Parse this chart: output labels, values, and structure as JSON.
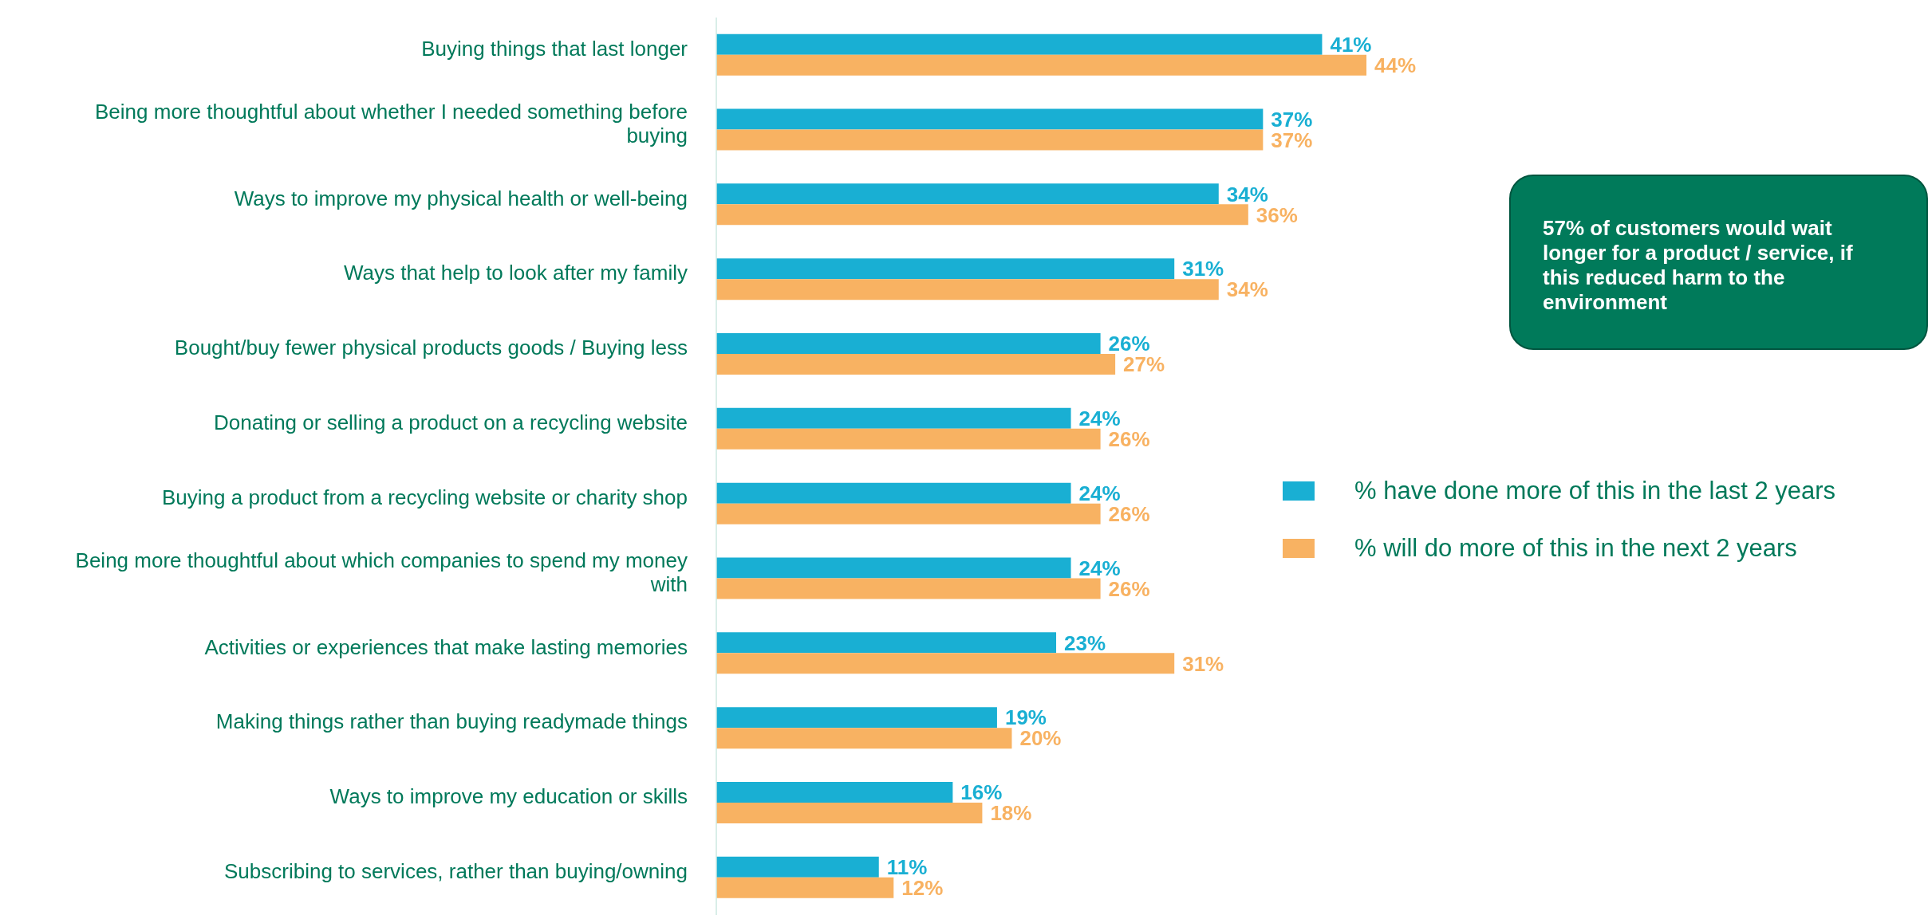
{
  "chart_data": {
    "type": "bar",
    "orientation": "horizontal",
    "categories": [
      "Buying things that last longer",
      "Being more thoughtful about whether I needed something before buying",
      "Ways to improve my physical health or well-being",
      "Ways that help to look after my family",
      "Bought/buy fewer physical products goods / Buying less",
      "Donating or selling a product on a recycling website",
      "Buying a product from a recycling website or charity shop",
      "Being more thoughtful about which companies to spend my money with",
      "Activities or experiences that make lasting memories",
      "Making things rather than buying readymade things",
      "Ways to improve my education or skills",
      "Subscribing to services, rather than buying/owning"
    ],
    "series": [
      {
        "name": "% have done more of this in the last 2 years",
        "color": "#19afd3",
        "values": [
          41,
          37,
          34,
          31,
          26,
          24,
          24,
          24,
          23,
          19,
          16,
          11
        ],
        "value_labels": [
          "41%",
          "37%",
          "34%",
          "31%",
          "26%",
          "24%",
          "24%",
          "24%",
          "23%",
          "19%",
          "16%",
          "11%"
        ]
      },
      {
        "name": "% will do more of this in the next 2 years",
        "color": "#f8b262",
        "values": [
          44,
          37,
          36,
          34,
          27,
          26,
          26,
          26,
          31,
          20,
          18,
          12
        ],
        "value_labels": [
          "44%",
          "37%",
          "36%",
          "34%",
          "27%",
          "26%",
          "26%",
          "26%",
          "31%",
          "20%",
          "18%",
          "12%"
        ]
      }
    ],
    "tick_labels": "y",
    "legend": "right",
    "annotations": [
      "57% of customers would wait longer for a product / service, if this reduced harm to the environment"
    ]
  }
}
